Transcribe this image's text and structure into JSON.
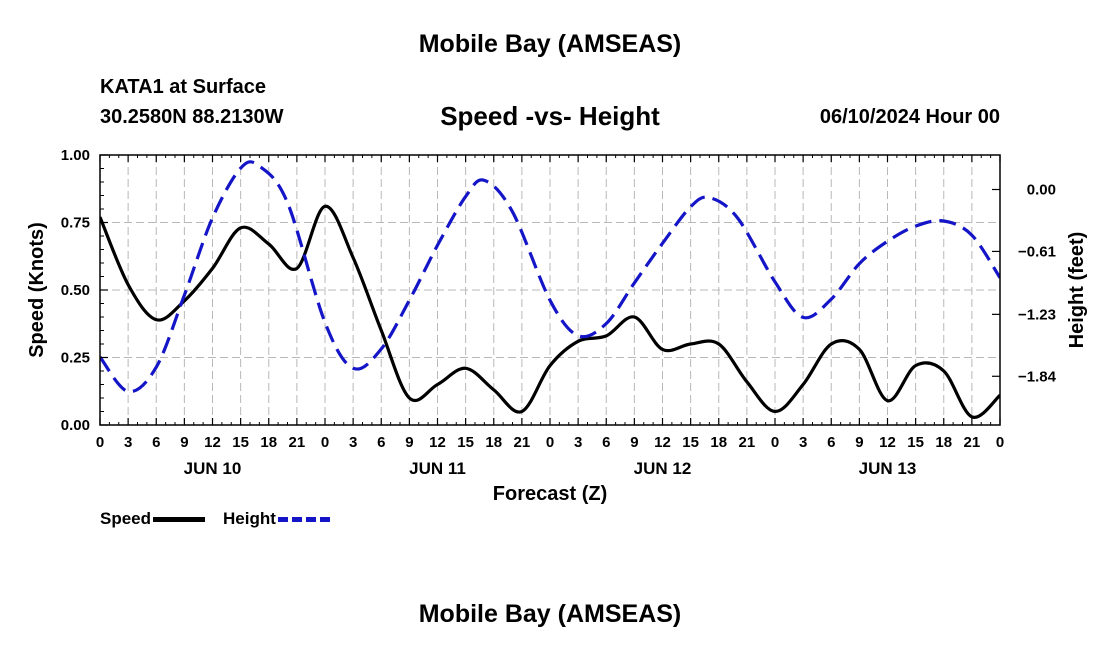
{
  "header": {
    "title": "Mobile Bay (AMSEAS)",
    "station": "KATA1 at Surface",
    "coords": "30.2580N  88.2130W",
    "subtitle": "Speed -vs- Height",
    "datetime": "06/10/2024 Hour 00"
  },
  "footer": {
    "title": "Mobile Bay (AMSEAS)"
  },
  "legend": {
    "speed_label": "Speed",
    "height_label": "Height"
  },
  "chart_data": {
    "type": "line",
    "title": "Speed -vs- Height",
    "xlabel": "Forecast (Z)",
    "ylabel_left": "Speed (Knots)",
    "ylabel_right": "Height (feet)",
    "x_range_hours": [
      0,
      96
    ],
    "y_left_range": [
      0,
      1.0
    ],
    "y_right_range": [
      -2.32,
      0.34
    ],
    "x_tick_labels": [
      "0",
      "3",
      "6",
      "9",
      "12",
      "15",
      "18",
      "21",
      "0",
      "3",
      "6",
      "9",
      "12",
      "15",
      "18",
      "21",
      "0",
      "3",
      "6",
      "9",
      "12",
      "15",
      "18",
      "21",
      "0",
      "3",
      "6",
      "9",
      "12",
      "15",
      "18",
      "21",
      "0"
    ],
    "day_labels": [
      {
        "hour": 12,
        "label": "JUN 10"
      },
      {
        "hour": 36,
        "label": "JUN 11"
      },
      {
        "hour": 60,
        "label": "JUN 12"
      },
      {
        "hour": 84,
        "label": "JUN 13"
      }
    ],
    "y_left_ticks": [
      {
        "value": 0.0,
        "label": "0.00"
      },
      {
        "value": 0.25,
        "label": "0.25"
      },
      {
        "value": 0.5,
        "label": "0.50"
      },
      {
        "value": 0.75,
        "label": "0.75"
      },
      {
        "value": 1.0,
        "label": "1.00"
      }
    ],
    "y_right_ticks": [
      {
        "value": 0.0,
        "label": "0.00"
      },
      {
        "value": -0.61,
        "label": "−0.61"
      },
      {
        "value": -1.23,
        "label": "−1.23"
      },
      {
        "value": -1.84,
        "label": "−1.84"
      }
    ],
    "grid": true,
    "series": [
      {
        "name": "Speed",
        "axis": "left",
        "color": "#000000",
        "style": "solid",
        "points": [
          [
            0,
            0.77
          ],
          [
            3,
            0.52
          ],
          [
            6,
            0.39
          ],
          [
            9,
            0.46
          ],
          [
            12,
            0.58
          ],
          [
            15,
            0.73
          ],
          [
            18,
            0.67
          ],
          [
            21,
            0.58
          ],
          [
            24,
            0.81
          ],
          [
            27,
            0.62
          ],
          [
            30,
            0.35
          ],
          [
            33,
            0.1
          ],
          [
            36,
            0.15
          ],
          [
            39,
            0.21
          ],
          [
            42,
            0.13
          ],
          [
            45,
            0.05
          ],
          [
            48,
            0.22
          ],
          [
            51,
            0.31
          ],
          [
            54,
            0.33
          ],
          [
            57,
            0.4
          ],
          [
            60,
            0.28
          ],
          [
            63,
            0.3
          ],
          [
            66,
            0.3
          ],
          [
            69,
            0.16
          ],
          [
            72,
            0.05
          ],
          [
            75,
            0.15
          ],
          [
            78,
            0.3
          ],
          [
            81,
            0.28
          ],
          [
            84,
            0.09
          ],
          [
            87,
            0.22
          ],
          [
            90,
            0.2
          ],
          [
            93,
            0.03
          ],
          [
            96,
            0.11
          ]
        ]
      },
      {
        "name": "Height",
        "axis": "right",
        "color": "#1515c8",
        "style": "dashed",
        "points": [
          [
            0,
            -1.65
          ],
          [
            3,
            -1.99
          ],
          [
            6,
            -1.75
          ],
          [
            9,
            -1.04
          ],
          [
            12,
            -0.28
          ],
          [
            15,
            0.21
          ],
          [
            17,
            0.23
          ],
          [
            20,
            -0.13
          ],
          [
            24,
            -1.31
          ],
          [
            27,
            -1.76
          ],
          [
            30,
            -1.57
          ],
          [
            33,
            -1.09
          ],
          [
            36,
            -0.55
          ],
          [
            39,
            -0.07
          ],
          [
            41,
            0.09
          ],
          [
            44,
            -0.22
          ],
          [
            48,
            -1.09
          ],
          [
            51,
            -1.44
          ],
          [
            54,
            -1.32
          ],
          [
            57,
            -0.92
          ],
          [
            60,
            -0.53
          ],
          [
            63,
            -0.17
          ],
          [
            65,
            -0.08
          ],
          [
            68,
            -0.28
          ],
          [
            72,
            -0.91
          ],
          [
            75,
            -1.26
          ],
          [
            78,
            -1.08
          ],
          [
            81,
            -0.73
          ],
          [
            84,
            -0.51
          ],
          [
            87,
            -0.36
          ],
          [
            90,
            -0.31
          ],
          [
            93,
            -0.45
          ],
          [
            96,
            -0.87
          ]
        ]
      }
    ]
  }
}
